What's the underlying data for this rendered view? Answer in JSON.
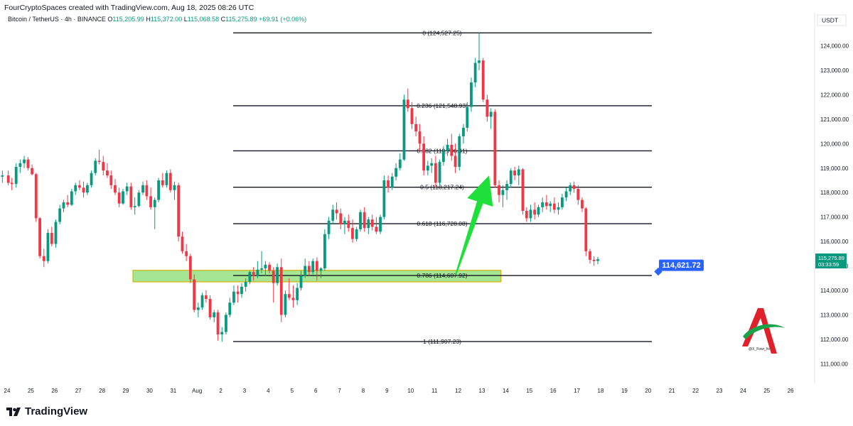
{
  "header": {
    "credit": "FourCryptoSpaces created with TradingView.com, Aug 18, 2025 08:26 UTC",
    "symbol": "Bitcoin / TetherUS · 4h · BINANCE",
    "open_label": "O",
    "open": "115,205.99",
    "high_label": "H",
    "high": "115,372.00",
    "low_label": "L",
    "low": "115,068.58",
    "close_label": "C",
    "close": "115,275.89",
    "change": "+69.91 (+0.06%)"
  },
  "price_axis": {
    "currency": "USDT",
    "current_price": "115,275.89",
    "countdown": "03:33:59"
  },
  "annotations": {
    "target_label": "114,621.72",
    "watermark": "@X_Fowr_ltv"
  },
  "footer": {
    "brand": "TradingView"
  },
  "colors": {
    "up": "#089981",
    "down": "#f23645",
    "zone_fill": "#8ee07a",
    "zone_border": "#d4b106",
    "arrow": "#1fe03b",
    "label_bg": "#2962ff"
  },
  "chart_data": {
    "type": "candlestick",
    "title": "Bitcoin / TetherUS · 4h · BINANCE",
    "interval": "4h",
    "y_axis": {
      "side": "right",
      "ticks": [
        111000,
        112000,
        113000,
        114000,
        115000,
        116000,
        117000,
        118000,
        119000,
        120000,
        121000,
        122000,
        123000,
        124000
      ],
      "tick_labels": [
        "111,000.00",
        "112,000.00",
        "113,000.00",
        "114,000.00",
        "115,000.00",
        "116,000.00",
        "117,000.00",
        "118,000.00",
        "119,000.00",
        "120,000.00",
        "121,000.00",
        "122,000.00",
        "123,000.00",
        "124,000.00"
      ]
    },
    "x_axis": {
      "ticks": [
        "24",
        "25",
        "26",
        "27",
        "28",
        "29",
        "30",
        "31",
        "Aug",
        "2",
        "3",
        "4",
        "5",
        "6",
        "7",
        "8",
        "9",
        "10",
        "11",
        "12",
        "13",
        "14",
        "15",
        "16",
        "17",
        "18",
        "19",
        "20",
        "21",
        "22",
        "23",
        "24",
        "25",
        "26"
      ]
    },
    "fibonacci": [
      {
        "label": "0 (124,527.25)",
        "level": 0,
        "price": 124527.25
      },
      {
        "label": "0.236 (121,548.93)",
        "level": 0.236,
        "price": 121548.93
      },
      {
        "label": "0.382 (119,706.41)",
        "level": 0.382,
        "price": 119706.41
      },
      {
        "label": "0.5 (118,217.24)",
        "level": 0.5,
        "price": 118217.24
      },
      {
        "label": "0.618 (116,728.08)",
        "level": 0.618,
        "price": 116728.08
      },
      {
        "label": "0.786 (114,607.92)",
        "level": 0.786,
        "price": 114607.92
      },
      {
        "label": "1 (111,907.23)",
        "level": 1,
        "price": 111907.23
      }
    ],
    "support_zone": {
      "from": 114350,
      "to": 114820,
      "start_day": 5.3,
      "end_day": 20.8
    },
    "arrow": {
      "from_day": 18.9,
      "from_price": 114650,
      "to_day": 20.3,
      "to_price": 118700
    },
    "current_price": 115275.89,
    "target_price": 114621.72,
    "candles": [
      [
        -0.2,
        118650,
        118900,
        118400,
        118700
      ],
      [
        0.05,
        118700,
        118900,
        118300,
        118400
      ],
      [
        0.2,
        118400,
        118600,
        118100,
        118350
      ],
      [
        0.38,
        118350,
        119200,
        118200,
        119050
      ],
      [
        0.55,
        119050,
        119350,
        118800,
        119200
      ],
      [
        0.72,
        119200,
        119500,
        119000,
        119350
      ],
      [
        0.88,
        119350,
        119450,
        118900,
        119000
      ],
      [
        1.05,
        119000,
        119150,
        118700,
        118750
      ],
      [
        1.22,
        118750,
        118800,
        116800,
        116950
      ],
      [
        1.38,
        116950,
        117000,
        115300,
        115400
      ],
      [
        1.55,
        115400,
        115700,
        114950,
        115200
      ],
      [
        1.72,
        115200,
        116500,
        115100,
        116350
      ],
      [
        1.88,
        116350,
        116600,
        115800,
        115900
      ],
      [
        2.05,
        115900,
        116900,
        115750,
        116800
      ],
      [
        2.22,
        116800,
        117500,
        116700,
        117350
      ],
      [
        2.38,
        117350,
        117700,
        117200,
        117600
      ],
      [
        2.55,
        117600,
        117900,
        117400,
        117500
      ],
      [
        2.72,
        117500,
        118150,
        117450,
        118050
      ],
      [
        2.88,
        118050,
        118400,
        117900,
        118300
      ],
      [
        3.05,
        118300,
        118500,
        118100,
        118200
      ],
      [
        3.22,
        118200,
        118450,
        117800,
        118000
      ],
      [
        3.38,
        118000,
        118400,
        117900,
        118300
      ],
      [
        3.55,
        118300,
        118900,
        118200,
        118800
      ],
      [
        3.72,
        118800,
        119400,
        118700,
        119300
      ],
      [
        3.88,
        119300,
        119750,
        119150,
        119250
      ],
      [
        4.05,
        119250,
        119500,
        118700,
        118900
      ],
      [
        4.22,
        118900,
        119200,
        118600,
        118700
      ],
      [
        4.38,
        118700,
        118900,
        118150,
        118300
      ],
      [
        4.55,
        118300,
        118550,
        117900,
        118000
      ],
      [
        4.72,
        118000,
        118200,
        117400,
        117550
      ],
      [
        4.88,
        117550,
        118150,
        117500,
        118050
      ],
      [
        5.05,
        118050,
        118400,
        117900,
        118250
      ],
      [
        5.22,
        118250,
        118400,
        117300,
        117400
      ],
      [
        5.38,
        117400,
        117800,
        117100,
        117450
      ],
      [
        5.55,
        117450,
        118100,
        117400,
        118000
      ],
      [
        5.72,
        118000,
        118450,
        117900,
        118300
      ],
      [
        5.88,
        118300,
        118500,
        117700,
        117850
      ],
      [
        6.05,
        117850,
        118200,
        117300,
        117400
      ],
      [
        6.22,
        117400,
        117800,
        116500,
        117700
      ],
      [
        6.38,
        117700,
        118600,
        117600,
        118500
      ],
      [
        6.55,
        118500,
        118800,
        118200,
        118300
      ],
      [
        6.72,
        118300,
        118900,
        118200,
        118800
      ],
      [
        6.88,
        118800,
        118950,
        118000,
        118100
      ],
      [
        7.05,
        118100,
        118450,
        117700,
        118300
      ],
      [
        7.22,
        118300,
        118400,
        116000,
        116200
      ],
      [
        7.38,
        116200,
        116400,
        115500,
        115600
      ],
      [
        7.55,
        115600,
        115900,
        115200,
        115400
      ],
      [
        7.72,
        115400,
        115500,
        114300,
        114450
      ],
      [
        7.88,
        114450,
        114650,
        113100,
        113200
      ],
      [
        8.05,
        113200,
        113500,
        112900,
        113300
      ],
      [
        8.22,
        113300,
        113900,
        113200,
        113800
      ],
      [
        8.38,
        113800,
        114000,
        113500,
        113650
      ],
      [
        8.55,
        113650,
        113800,
        112800,
        112900
      ],
      [
        8.72,
        112900,
        113200,
        112700,
        113100
      ],
      [
        8.88,
        113100,
        113200,
        111950,
        112200
      ],
      [
        9.05,
        112200,
        112500,
        111900,
        112300
      ],
      [
        9.22,
        112300,
        113100,
        112200,
        113000
      ],
      [
        9.38,
        113000,
        113700,
        112900,
        113500
      ],
      [
        9.55,
        113500,
        114200,
        113400,
        113950
      ],
      [
        9.72,
        113950,
        114200,
        113500,
        113850
      ],
      [
        9.88,
        113850,
        114300,
        113700,
        114150
      ],
      [
        10.05,
        114150,
        114500,
        113950,
        114350
      ],
      [
        10.22,
        114350,
        114800,
        114250,
        114750
      ],
      [
        10.38,
        114750,
        114950,
        114400,
        114600
      ],
      [
        10.55,
        114600,
        115200,
        114500,
        114850
      ],
      [
        10.72,
        114850,
        115600,
        114700,
        114900
      ],
      [
        10.88,
        114900,
        115200,
        114600,
        115050
      ],
      [
        11.05,
        115050,
        115150,
        114700,
        114800
      ],
      [
        11.22,
        114800,
        114950,
        113500,
        114300
      ],
      [
        11.38,
        114300,
        115100,
        114200,
        114950
      ],
      [
        11.55,
        114950,
        115300,
        112700,
        113000
      ],
      [
        11.72,
        113000,
        114000,
        112900,
        113850
      ],
      [
        11.88,
        113850,
        114500,
        113600,
        113700
      ],
      [
        12.05,
        113700,
        114200,
        113300,
        113600
      ],
      [
        12.22,
        113600,
        114300,
        113400,
        114100
      ],
      [
        12.38,
        114100,
        114800,
        114000,
        114600
      ],
      [
        12.55,
        114600,
        115300,
        114500,
        115000
      ],
      [
        12.72,
        115000,
        115200,
        114600,
        114750
      ],
      [
        12.88,
        114750,
        115300,
        114650,
        115200
      ],
      [
        13.05,
        115200,
        115350,
        114400,
        114800
      ],
      [
        13.22,
        114800,
        114950,
        114500,
        114900
      ],
      [
        13.38,
        114900,
        116500,
        114800,
        116300
      ],
      [
        13.55,
        116300,
        117000,
        116100,
        116850
      ],
      [
        13.72,
        116850,
        117500,
        116700,
        117300
      ],
      [
        13.88,
        117300,
        117600,
        116900,
        117150
      ],
      [
        14.05,
        117150,
        117350,
        116500,
        116700
      ],
      [
        14.22,
        116700,
        117000,
        116300,
        116850
      ],
      [
        14.38,
        116850,
        117100,
        116400,
        116550
      ],
      [
        14.55,
        116550,
        116900,
        115950,
        116100
      ],
      [
        14.72,
        116100,
        116600,
        116000,
        116500
      ],
      [
        14.88,
        116500,
        117300,
        116400,
        117200
      ],
      [
        15.05,
        117200,
        117400,
        116400,
        116550
      ],
      [
        15.22,
        116550,
        117000,
        116300,
        116900
      ],
      [
        15.38,
        116900,
        117100,
        116450,
        116600
      ],
      [
        15.55,
        116600,
        117000,
        116300,
        116400
      ],
      [
        15.72,
        116400,
        117100,
        116300,
        117000
      ],
      [
        15.88,
        117000,
        118700,
        116900,
        118500
      ],
      [
        16.05,
        118500,
        118700,
        118000,
        118200
      ],
      [
        16.22,
        118200,
        118800,
        118100,
        118650
      ],
      [
        16.38,
        118650,
        119200,
        118500,
        119000
      ],
      [
        16.55,
        119000,
        119600,
        118900,
        119350
      ],
      [
        16.72,
        119350,
        122000,
        119300,
        121800
      ],
      [
        16.88,
        121800,
        122250,
        121300,
        121450
      ],
      [
        17.05,
        121450,
        121700,
        120600,
        120800
      ],
      [
        17.22,
        120800,
        121100,
        120300,
        120500
      ],
      [
        17.38,
        120500,
        120800,
        119700,
        120000
      ],
      [
        17.55,
        120000,
        120300,
        118700,
        118900
      ],
      [
        17.72,
        118900,
        119300,
        118700,
        119100
      ],
      [
        17.88,
        119100,
        119400,
        118800,
        119200
      ],
      [
        18.05,
        119200,
        119500,
        118200,
        118400
      ],
      [
        18.22,
        118400,
        119350,
        118300,
        119250
      ],
      [
        18.38,
        119250,
        119900,
        119100,
        119700
      ],
      [
        18.55,
        119700,
        120200,
        119500,
        119950
      ],
      [
        18.72,
        119950,
        120400,
        119300,
        119500
      ],
      [
        18.88,
        119500,
        120000,
        118800,
        119050
      ],
      [
        19.05,
        119050,
        120400,
        118900,
        120300
      ],
      [
        19.22,
        120300,
        120800,
        120000,
        120650
      ],
      [
        19.38,
        120650,
        121700,
        120500,
        121500
      ],
      [
        19.55,
        121500,
        122700,
        121300,
        122500
      ],
      [
        19.72,
        122500,
        123500,
        122300,
        123300
      ],
      [
        19.88,
        123300,
        124527,
        123000,
        123400
      ],
      [
        20.05,
        123400,
        123500,
        121700,
        121800
      ],
      [
        20.22,
        121800,
        122000,
        120900,
        121100
      ],
      [
        20.38,
        121100,
        121450,
        120600,
        121300
      ],
      [
        20.55,
        121300,
        121400,
        118200,
        118300
      ],
      [
        20.72,
        118300,
        118500,
        117600,
        117900
      ],
      [
        20.88,
        117900,
        118300,
        117400,
        118100
      ],
      [
        21.05,
        118100,
        118500,
        117700,
        118350
      ],
      [
        21.22,
        118350,
        119000,
        118200,
        118900
      ],
      [
        21.38,
        118900,
        119050,
        118500,
        118700
      ],
      [
        21.55,
        118700,
        119100,
        118300,
        118950
      ],
      [
        21.72,
        118950,
        119000,
        117100,
        117250
      ],
      [
        21.88,
        117250,
        117400,
        116800,
        116950
      ],
      [
        22.05,
        116950,
        117500,
        116800,
        117300
      ],
      [
        22.22,
        117300,
        117600,
        116900,
        117100
      ],
      [
        22.38,
        117100,
        117500,
        117000,
        117400
      ],
      [
        22.55,
        117400,
        117800,
        117200,
        117600
      ],
      [
        22.72,
        117600,
        117900,
        117300,
        117450
      ],
      [
        22.88,
        117450,
        117650,
        117200,
        117550
      ],
      [
        23.05,
        117550,
        117800,
        117150,
        117300
      ],
      [
        23.22,
        117300,
        117600,
        117100,
        117400
      ],
      [
        23.38,
        117400,
        117950,
        117300,
        117800
      ],
      [
        23.55,
        117800,
        118200,
        117650,
        118050
      ],
      [
        23.72,
        118050,
        118400,
        117900,
        118300
      ],
      [
        23.88,
        118300,
        118450,
        118000,
        118150
      ],
      [
        24.05,
        118150,
        118300,
        117500,
        117700
      ],
      [
        24.22,
        117700,
        117800,
        117200,
        117350
      ],
      [
        24.38,
        117350,
        117400,
        115400,
        115600
      ],
      [
        24.55,
        115600,
        115700,
        115100,
        115250
      ],
      [
        24.72,
        115250,
        115400,
        115000,
        115200
      ],
      [
        24.88,
        115205.99,
        115372,
        115068.58,
        115275.89
      ]
    ]
  }
}
